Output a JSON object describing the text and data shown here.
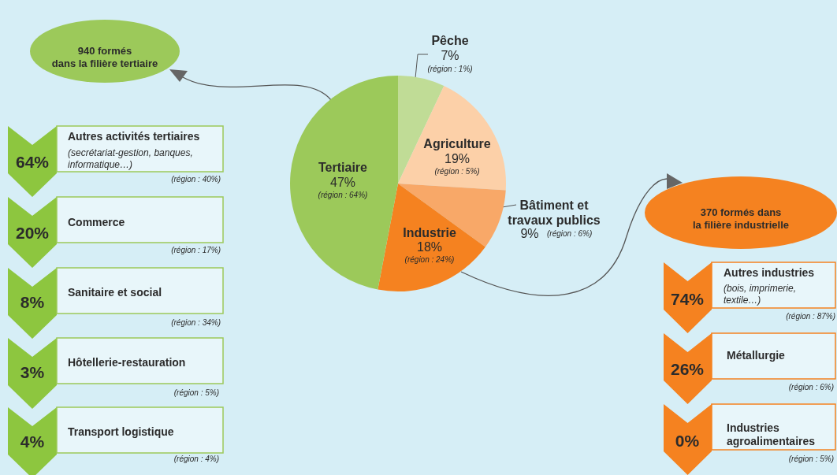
{
  "chart_data": {
    "type": "pie",
    "categories": [
      "Pêche",
      "Agriculture",
      "Bâtiment et travaux publics",
      "Industrie",
      "Tertiaire"
    ],
    "values": [
      7,
      19,
      9,
      18,
      47
    ],
    "colors": [
      "#c0dc96",
      "#fcd0a8",
      "#f8a868",
      "#f58220",
      "#9cc95a"
    ],
    "value_labels": [
      "7%",
      "19%",
      "9%",
      "18%",
      "47%"
    ],
    "annotations": [
      "(région : 1%)",
      "(région : 5%)",
      "(région : 6%)",
      "(région : 24%)",
      "(région : 64%)",
      "940 formés dans la filière tertiaire",
      "370 formés dans la filière industrielle",
      "64%",
      "Autres activités tertiaires",
      "(secrétariat-gestion, banques, informatique…)",
      "(région : 40%)",
      "20%",
      "Commerce",
      "(région : 17%)",
      "8%",
      "Sanitaire et social",
      "(région : 34%)",
      "3%",
      "Hôtellerie-restauration",
      "(région : 5%)",
      "4%",
      "Transport logistique",
      "(région : 4%)",
      "74%",
      "Autres industries",
      "(bois, imprimerie, textile…)",
      "(région : 87%)",
      "26%",
      "Métallurgie",
      "(région : 6%)",
      "0%",
      "Industries agroalimentaires",
      "(région : 5%)"
    ]
  }
}
